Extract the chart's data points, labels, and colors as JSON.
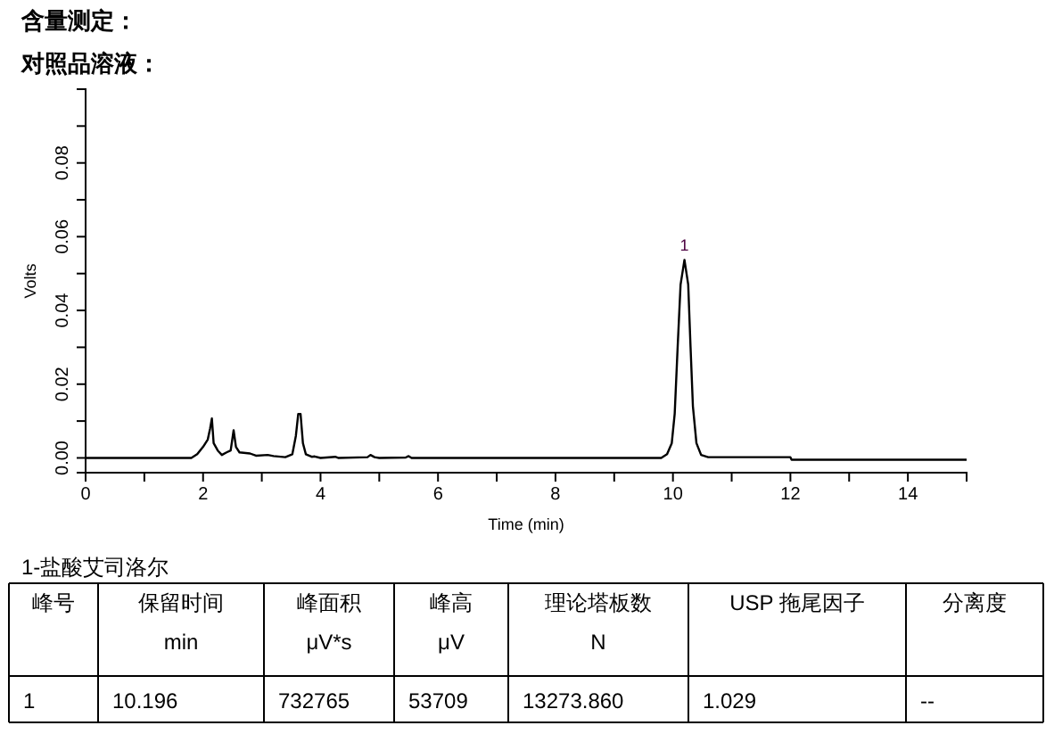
{
  "chart_data": {
    "type": "line",
    "title": "含量测定：",
    "subtitle": "对照品溶液：",
    "xlabel": "Time (min)",
    "ylabel": "Volts",
    "x": [
      0,
      1.8,
      1.9,
      2.0,
      2.08,
      2.12,
      2.15,
      2.18,
      2.25,
      2.32,
      2.4,
      2.47,
      2.52,
      2.56,
      2.62,
      2.8,
      2.9,
      3.1,
      3.2,
      3.4,
      3.52,
      3.58,
      3.62,
      3.66,
      3.7,
      3.75,
      3.85,
      3.9,
      4.0,
      4.25,
      4.3,
      4.8,
      4.85,
      4.92,
      5.0,
      5.45,
      5.5,
      5.55,
      9.8,
      9.9,
      9.98,
      10.03,
      10.08,
      10.13,
      10.196,
      10.26,
      10.3,
      10.34,
      10.4,
      10.48,
      10.6,
      12.0,
      12.02,
      15
    ],
    "series": [
      {
        "color": "#000000",
        "values": [
          0,
          0,
          0.001,
          0.003,
          0.005,
          0.008,
          0.0107,
          0.004,
          0.002,
          0.0008,
          0.0015,
          0.002,
          0.0075,
          0.003,
          0.0015,
          0.0012,
          0.0006,
          0.0008,
          0.0005,
          0.0002,
          0.001,
          0.006,
          0.0119,
          0.0119,
          0.004,
          0.001,
          0.0003,
          0.0004,
          0,
          0.0003,
          0,
          0.0002,
          0.0008,
          0.0002,
          0,
          0.0001,
          0.0005,
          0,
          0,
          0.001,
          0.004,
          0.012,
          0.03,
          0.047,
          0.0537,
          0.047,
          0.03,
          0.014,
          0.004,
          0.0008,
          0.0002,
          0.0002,
          -0.0005,
          -0.0005
        ]
      }
    ],
    "xlim": [
      0,
      15
    ],
    "ylim": [
      -0.004,
      0.1
    ],
    "xticks": [
      0,
      {
        "value": 1,
        "label": null
      },
      2,
      {
        "value": 3,
        "label": null
      },
      4,
      {
        "value": 5,
        "label": null
      },
      6,
      {
        "value": 7,
        "label": null
      },
      8,
      {
        "value": 9,
        "label": null
      },
      10,
      {
        "value": 11,
        "label": null
      },
      12,
      {
        "value": 13,
        "label": null
      },
      14,
      {
        "value": 15,
        "label": null
      }
    ],
    "yticks": [
      {
        "value": 0,
        "label": "0.00"
      },
      {
        "value": 0.01,
        "label": null
      },
      {
        "value": 0.02,
        "label": "0.02"
      },
      {
        "value": 0.03,
        "label": null
      },
      {
        "value": 0.04,
        "label": "0.04"
      },
      {
        "value": 0.05,
        "label": null
      },
      {
        "value": 0.06,
        "label": "0.06"
      },
      {
        "value": 0.07,
        "label": null
      },
      {
        "value": 0.08,
        "label": "0.08"
      },
      {
        "value": 0.09,
        "label": null
      },
      {
        "value": 0.1,
        "label": null
      }
    ],
    "grid": false,
    "annotations": [
      {
        "text": "1",
        "x": 10.196,
        "y": 0.0537
      },
      "1-盐酸艾司洛尔",
      "峰号",
      "保留时间\nmin",
      "峰面积\nμV*s",
      "峰高\nμV",
      "理论塔板数\nN",
      "USP 拖尾因子",
      "分离度",
      "1",
      "10.196",
      "732765",
      "53709",
      "13273.860",
      "1.029",
      "--"
    ]
  }
}
